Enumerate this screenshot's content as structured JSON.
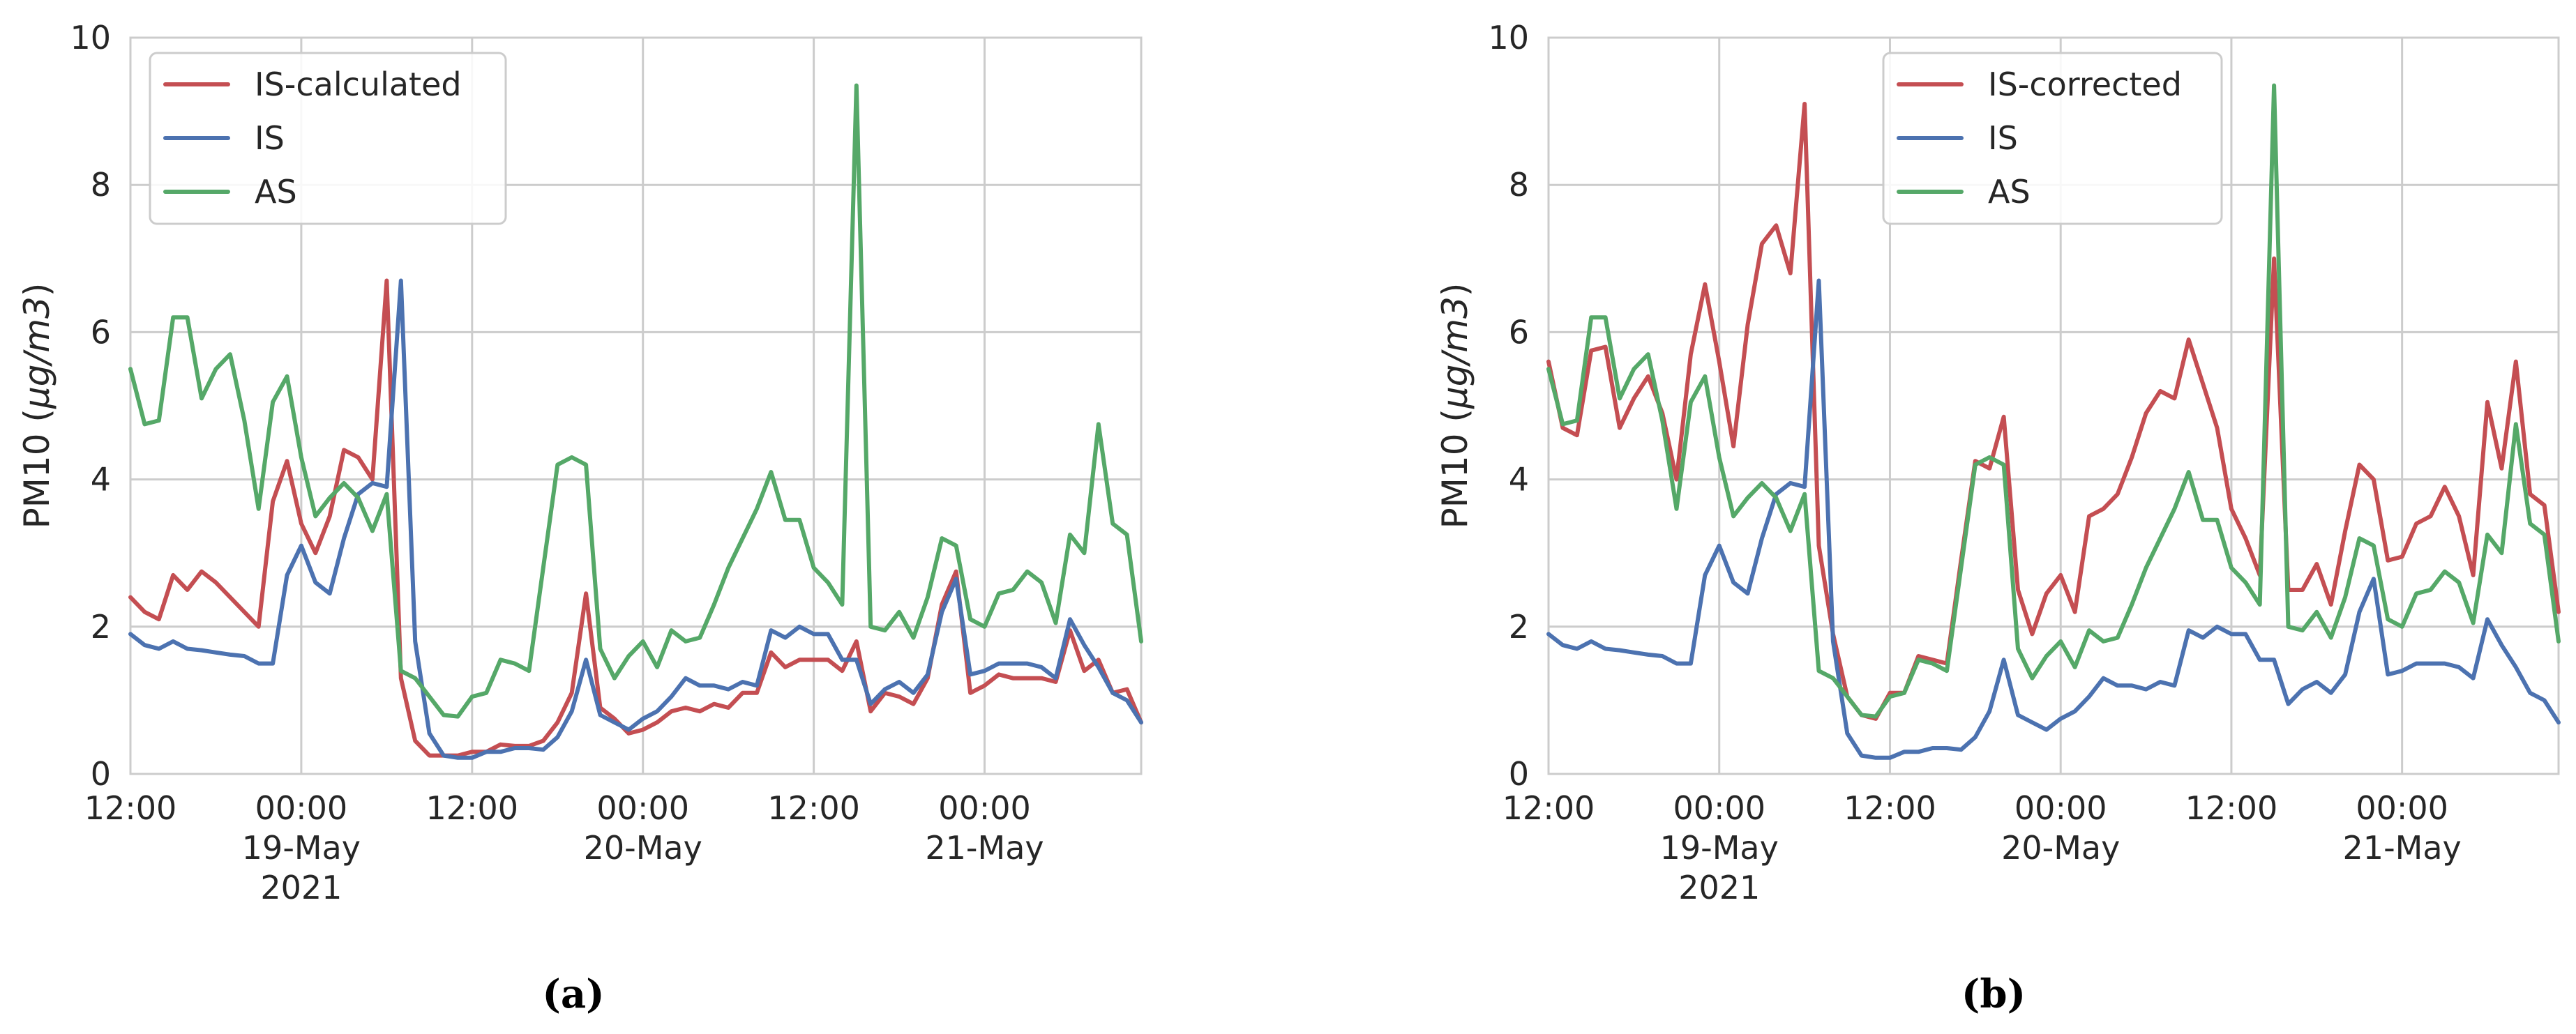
{
  "chart_data": [
    {
      "type": "line",
      "caption": "(a)",
      "ylabel_text": "PM10 (",
      "ylabel_unit": "μg/m3",
      "ylabel_close": ")",
      "ylim": [
        0,
        10
      ],
      "yticks": [
        "0",
        "2",
        "4",
        "6",
        "8",
        "10"
      ],
      "xlim_hours": [
        0,
        71
      ],
      "xticks": [
        {
          "hour": 0,
          "lines": [
            "12:00"
          ]
        },
        {
          "hour": 12,
          "lines": [
            "00:00",
            "19-May",
            "2021"
          ]
        },
        {
          "hour": 24,
          "lines": [
            "12:00"
          ]
        },
        {
          "hour": 36,
          "lines": [
            "00:00",
            "20-May"
          ]
        },
        {
          "hour": 48,
          "lines": [
            "12:00"
          ]
        },
        {
          "hour": 60,
          "lines": [
            "00:00",
            "21-May"
          ]
        }
      ],
      "grid": true,
      "legend_position": "top-left",
      "series": [
        {
          "name": "IS-calculated",
          "color": "#c44e52",
          "values": [
            2.4,
            2.2,
            2.1,
            2.7,
            2.5,
            2.75,
            2.6,
            2.4,
            2.2,
            2.0,
            3.7,
            4.25,
            3.4,
            3.0,
            3.5,
            4.4,
            4.3,
            4.0,
            6.7,
            1.3,
            0.45,
            0.25,
            0.25,
            0.25,
            0.3,
            0.3,
            0.4,
            0.38,
            0.38,
            0.45,
            0.7,
            1.1,
            2.45,
            0.9,
            0.75,
            0.55,
            0.6,
            0.7,
            0.85,
            0.9,
            0.85,
            0.95,
            0.9,
            1.1,
            1.1,
            1.65,
            1.45,
            1.55,
            1.55,
            1.55,
            1.4,
            1.8,
            0.85,
            1.1,
            1.05,
            0.95,
            1.3,
            2.3,
            2.75,
            1.1,
            1.2,
            1.35,
            1.3,
            1.3,
            1.3,
            1.25,
            1.95,
            1.4,
            1.55,
            1.1,
            1.15,
            0.7
          ]
        },
        {
          "name": "IS",
          "color": "#4c72b0",
          "values": [
            1.9,
            1.75,
            1.7,
            1.8,
            1.7,
            1.68,
            1.65,
            1.62,
            1.6,
            1.5,
            1.5,
            2.7,
            3.1,
            2.6,
            2.45,
            3.2,
            3.8,
            3.95,
            3.9,
            6.7,
            1.8,
            0.55,
            0.25,
            0.22,
            0.22,
            0.3,
            0.3,
            0.35,
            0.35,
            0.33,
            0.5,
            0.85,
            1.55,
            0.8,
            0.7,
            0.6,
            0.75,
            0.85,
            1.05,
            1.3,
            1.2,
            1.2,
            1.15,
            1.25,
            1.2,
            1.95,
            1.85,
            2.0,
            1.9,
            1.9,
            1.55,
            1.55,
            0.95,
            1.15,
            1.25,
            1.1,
            1.35,
            2.2,
            2.65,
            1.35,
            1.4,
            1.5,
            1.5,
            1.5,
            1.45,
            1.3,
            2.1,
            1.75,
            1.45,
            1.1,
            1.0,
            0.7
          ]
        },
        {
          "name": "AS",
          "color": "#55a868",
          "values": [
            5.5,
            4.75,
            4.8,
            6.2,
            6.2,
            5.1,
            5.5,
            5.7,
            4.8,
            3.6,
            5.05,
            5.4,
            4.3,
            3.5,
            3.75,
            3.95,
            3.75,
            3.3,
            3.8,
            1.4,
            1.3,
            1.05,
            0.8,
            0.78,
            1.05,
            1.1,
            1.55,
            1.5,
            1.4,
            2.8,
            4.2,
            4.3,
            4.2,
            1.7,
            1.3,
            1.6,
            1.8,
            1.45,
            1.95,
            1.8,
            1.85,
            2.3,
            2.8,
            3.2,
            3.6,
            4.1,
            3.45,
            3.45,
            2.8,
            2.6,
            2.3,
            9.35,
            2.0,
            1.95,
            2.2,
            1.85,
            2.4,
            3.2,
            3.1,
            2.1,
            2.0,
            2.45,
            2.5,
            2.75,
            2.6,
            2.05,
            3.25,
            3.0,
            4.75,
            3.4,
            3.25,
            1.8
          ]
        }
      ]
    },
    {
      "type": "line",
      "caption": "(b)",
      "ylabel_text": "PM10 (",
      "ylabel_unit": "μg/m3",
      "ylabel_close": ")",
      "ylim": [
        0,
        10
      ],
      "yticks": [
        "0",
        "2",
        "4",
        "6",
        "8",
        "10"
      ],
      "xlim_hours": [
        0,
        71
      ],
      "xticks": [
        {
          "hour": 0,
          "lines": [
            "12:00"
          ]
        },
        {
          "hour": 12,
          "lines": [
            "00:00",
            "19-May",
            "2021"
          ]
        },
        {
          "hour": 24,
          "lines": [
            "12:00"
          ]
        },
        {
          "hour": 36,
          "lines": [
            "00:00",
            "20-May"
          ]
        },
        {
          "hour": 48,
          "lines": [
            "12:00"
          ]
        },
        {
          "hour": 60,
          "lines": [
            "00:00",
            "21-May"
          ]
        }
      ],
      "grid": true,
      "legend_position": "top-center",
      "series": [
        {
          "name": "IS-corrected",
          "color": "#c44e52",
          "values": [
            5.6,
            4.7,
            4.6,
            5.75,
            5.8,
            4.7,
            5.1,
            5.4,
            4.9,
            4.0,
            5.7,
            6.65,
            5.6,
            4.45,
            6.1,
            7.2,
            7.45,
            6.8,
            9.1,
            3.1,
            1.9,
            1.05,
            0.8,
            0.75,
            1.1,
            1.1,
            1.6,
            1.55,
            1.5,
            2.9,
            4.25,
            4.15,
            4.85,
            2.5,
            1.9,
            2.45,
            2.7,
            2.2,
            3.5,
            3.6,
            3.8,
            4.3,
            4.9,
            5.2,
            5.1,
            5.9,
            5.3,
            4.7,
            3.6,
            3.2,
            2.7,
            7.0,
            2.5,
            2.5,
            2.85,
            2.3,
            3.3,
            4.2,
            4.0,
            2.9,
            2.95,
            3.4,
            3.5,
            3.9,
            3.5,
            2.7,
            5.05,
            4.15,
            5.6,
            3.8,
            3.65,
            2.2
          ]
        },
        {
          "name": "IS",
          "color": "#4c72b0",
          "values": [
            1.9,
            1.75,
            1.7,
            1.8,
            1.7,
            1.68,
            1.65,
            1.62,
            1.6,
            1.5,
            1.5,
            2.7,
            3.1,
            2.6,
            2.45,
            3.2,
            3.8,
            3.95,
            3.9,
            6.7,
            1.8,
            0.55,
            0.25,
            0.22,
            0.22,
            0.3,
            0.3,
            0.35,
            0.35,
            0.33,
            0.5,
            0.85,
            1.55,
            0.8,
            0.7,
            0.6,
            0.75,
            0.85,
            1.05,
            1.3,
            1.2,
            1.2,
            1.15,
            1.25,
            1.2,
            1.95,
            1.85,
            2.0,
            1.9,
            1.9,
            1.55,
            1.55,
            0.95,
            1.15,
            1.25,
            1.1,
            1.35,
            2.2,
            2.65,
            1.35,
            1.4,
            1.5,
            1.5,
            1.5,
            1.45,
            1.3,
            2.1,
            1.75,
            1.45,
            1.1,
            1.0,
            0.7
          ]
        },
        {
          "name": "AS",
          "color": "#55a868",
          "values": [
            5.5,
            4.75,
            4.8,
            6.2,
            6.2,
            5.1,
            5.5,
            5.7,
            4.8,
            3.6,
            5.05,
            5.4,
            4.3,
            3.5,
            3.75,
            3.95,
            3.75,
            3.3,
            3.8,
            1.4,
            1.3,
            1.05,
            0.8,
            0.78,
            1.05,
            1.1,
            1.55,
            1.5,
            1.4,
            2.8,
            4.2,
            4.3,
            4.2,
            1.7,
            1.3,
            1.6,
            1.8,
            1.45,
            1.95,
            1.8,
            1.85,
            2.3,
            2.8,
            3.2,
            3.6,
            4.1,
            3.45,
            3.45,
            2.8,
            2.6,
            2.3,
            9.35,
            2.0,
            1.95,
            2.2,
            1.85,
            2.4,
            3.2,
            3.1,
            2.1,
            2.0,
            2.45,
            2.5,
            2.75,
            2.6,
            2.05,
            3.25,
            3.0,
            4.75,
            3.4,
            3.25,
            1.8
          ]
        }
      ]
    }
  ]
}
